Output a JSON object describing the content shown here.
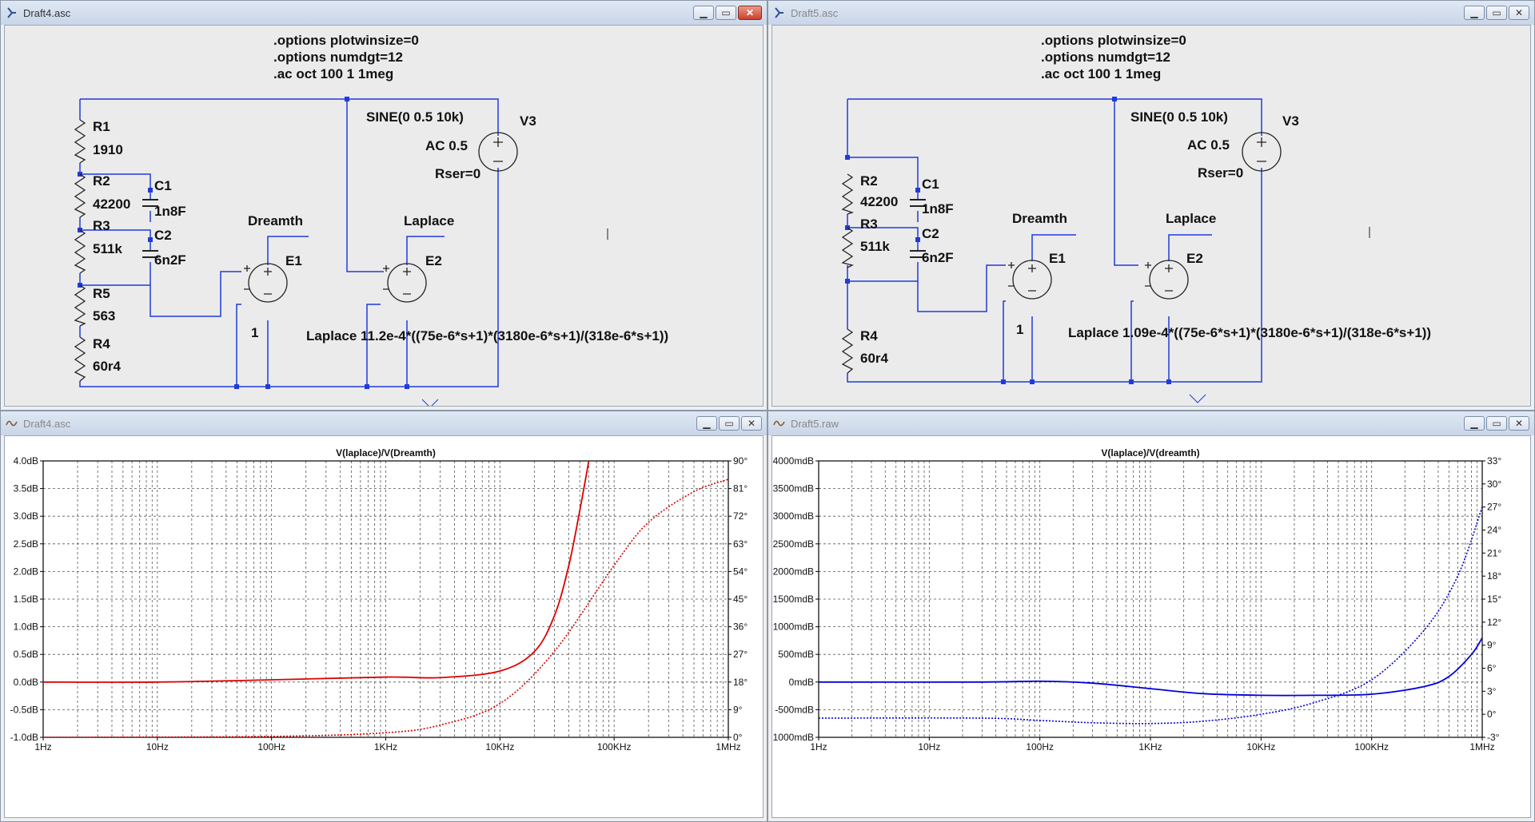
{
  "windows": [
    {
      "title": "Draft4.asc",
      "directives": [
        ".options plotwinsize=0",
        ".options numdgt=12",
        ".ac oct 100 1 1meg"
      ],
      "source": {
        "name": "V3",
        "value": "SINE(0 0.5 10k)",
        "ac": "AC 0.5",
        "rser": "Rser=0"
      },
      "components": {
        "R1": {
          "name": "R1",
          "value": "1910"
        },
        "R2": {
          "name": "R2",
          "value": "42200"
        },
        "R3": {
          "name": "R3",
          "value": "511k"
        },
        "R5": {
          "name": "R5",
          "value": "563"
        },
        "R4": {
          "name": "R4",
          "value": "60r4"
        },
        "C1": {
          "name": "C1",
          "value": "1n8F"
        },
        "C2": {
          "name": "C2",
          "value": "6n2F"
        },
        "E1": {
          "name": "E1",
          "value": "1"
        },
        "E2": {
          "name": "E2",
          "value": "Laplace 11.2e-4*((75e-6*s+1)*(3180e-6*s+1)/(318e-6*s+1))"
        }
      },
      "net_labels": [
        "Dreamth",
        "Laplace"
      ]
    },
    {
      "title": "Draft5.asc",
      "directives": [
        ".options plotwinsize=0",
        ".options numdgt=12",
        ".ac oct 100 1 1meg"
      ],
      "source": {
        "name": "V3",
        "value": "SINE(0 0.5 10k)",
        "ac": "AC 0.5",
        "rser": "Rser=0"
      },
      "components": {
        "R2": {
          "name": "R2",
          "value": "42200"
        },
        "R3": {
          "name": "R3",
          "value": "511k"
        },
        "R4": {
          "name": "R4",
          "value": "60r4"
        },
        "C1": {
          "name": "C1",
          "value": "1n8F"
        },
        "C2": {
          "name": "C2",
          "value": "6n2F"
        },
        "E1": {
          "name": "E1",
          "value": "1"
        },
        "E2": {
          "name": "E2",
          "value": "Laplace 1.09e-4*((75e-6*s+1)*(3180e-6*s+1)/(318e-6*s+1))"
        }
      },
      "net_labels": [
        "Dreamth",
        "Laplace"
      ]
    },
    {
      "title": "Draft4.asc"
    },
    {
      "title": "Draft5.raw"
    }
  ],
  "chart_data": [
    {
      "type": "line",
      "title": "V(laplace)/V(Dreamth)",
      "title_color": "#cc0000",
      "x_scale": "log",
      "x_ticks": [
        "1Hz",
        "10Hz",
        "100Hz",
        "1KHz",
        "10KHz",
        "100KHz",
        "1MHz"
      ],
      "xlim": [
        1,
        1000000
      ],
      "ylim_left": [
        -1.0,
        4.0
      ],
      "left_ticks": [
        "-1.0dB",
        "-0.5dB",
        "0.0dB",
        "0.5dB",
        "1.0dB",
        "1.5dB",
        "2.0dB",
        "2.5dB",
        "3.0dB",
        "3.5dB",
        "4.0dB"
      ],
      "ylim_right": [
        0,
        90
      ],
      "right_ticks": [
        "0°",
        "9°",
        "18°",
        "27°",
        "36°",
        "45°",
        "54°",
        "63°",
        "72°",
        "81°",
        "90°"
      ],
      "grid": true,
      "series": [
        {
          "axis": "left",
          "style": "solid",
          "color": "#dd0000",
          "x": [
            1,
            10,
            100,
            1000,
            3000,
            10000,
            20000,
            30000,
            40000,
            50000,
            60000
          ],
          "y": [
            0,
            0,
            0.04,
            0.09,
            0.08,
            0.2,
            0.55,
            1.2,
            2.1,
            3.1,
            4.0
          ]
        },
        {
          "axis": "right",
          "style": "dotted",
          "color": "#dd0000",
          "x": [
            1,
            100,
            1000,
            3000,
            10000,
            30000,
            100000,
            200000,
            500000,
            1000000
          ],
          "y": [
            0,
            0.3,
            1.5,
            4,
            11,
            28,
            56,
            70,
            80,
            84
          ]
        }
      ]
    },
    {
      "type": "line",
      "title": "V(laplace)/V(dreamth)",
      "title_color": "#0000cc",
      "x_scale": "log",
      "x_ticks": [
        "1Hz",
        "10Hz",
        "100Hz",
        "1KHz",
        "10KHz",
        "100KHz",
        "1MHz"
      ],
      "xlim": [
        1,
        1000000
      ],
      "ylim_left": [
        -1000,
        4000
      ],
      "left_ticks": [
        "-1000mdB",
        "-500mdB",
        "0mdB",
        "500mdB",
        "1000mdB",
        "1500mdB",
        "2000mdB",
        "2500mdB",
        "3000mdB",
        "3500mdB",
        "4000mdB"
      ],
      "ylim_right": [
        -3,
        33
      ],
      "right_ticks": [
        "-3°",
        "0°",
        "3°",
        "6°",
        "9°",
        "12°",
        "15°",
        "18°",
        "21°",
        "24°",
        "27°",
        "30°",
        "33°"
      ],
      "grid": true,
      "series": [
        {
          "axis": "left",
          "style": "solid",
          "color": "#0000dd",
          "x": [
            1,
            30,
            100,
            300,
            1000,
            3000,
            10000,
            30000,
            100000,
            300000,
            500000,
            800000,
            1000000
          ],
          "y": [
            0,
            0,
            15,
            -20,
            -120,
            -210,
            -240,
            -240,
            -220,
            -80,
            100,
            500,
            800
          ]
        },
        {
          "axis": "right",
          "style": "dotted",
          "color": "#0000dd",
          "x": [
            1,
            30,
            100,
            300,
            1000,
            3000,
            10000,
            30000,
            100000,
            300000,
            600000,
            1000000
          ],
          "y": [
            -0.5,
            -0.5,
            -0.8,
            -1.1,
            -1.2,
            -0.9,
            0,
            1.5,
            4.5,
            11,
            18,
            27
          ]
        }
      ]
    }
  ]
}
